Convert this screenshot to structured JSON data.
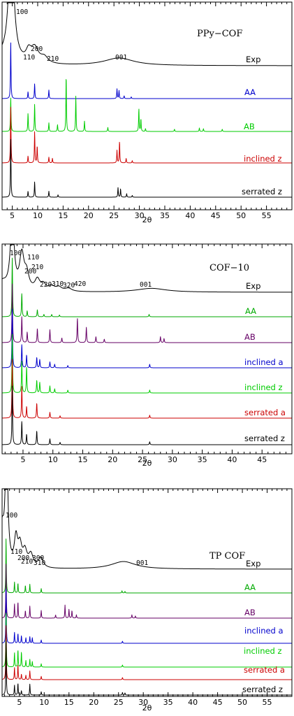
{
  "chart_data": [
    {
      "type": "line",
      "title": "PPy−COF",
      "xlabel": "2θ",
      "ylabel": "",
      "xlim": [
        3,
        60
      ],
      "xticks": [
        5,
        10,
        15,
        20,
        25,
        30,
        35,
        40,
        45,
        50,
        55
      ],
      "grid": false,
      "series": [
        {
          "name": "Exp",
          "color": "#000000",
          "kind": "exp",
          "low_rise": 6,
          "low_width": 1.8,
          "peaks": [
            {
              "x": 4.8,
              "h": 100
            },
            {
              "x": 8.2,
              "h": 8
            },
            {
              "x": 9.4,
              "h": 12
            },
            {
              "x": 11.3,
              "h": 5
            },
            {
              "x": 26.0,
              "h": 6
            }
          ],
          "widths": [
            0.6,
            0.6,
            0.9,
            0.9,
            3.5
          ]
        },
        {
          "name": "AA",
          "color": "#0000cc",
          "peaks": [
            {
              "x": 4.7,
              "h": 100
            },
            {
              "x": 8.1,
              "h": 12
            },
            {
              "x": 9.4,
              "h": 26
            },
            {
              "x": 12.2,
              "h": 15
            },
            {
              "x": 25.6,
              "h": 17
            },
            {
              "x": 26.0,
              "h": 14
            },
            {
              "x": 27.0,
              "h": 5
            },
            {
              "x": 28.4,
              "h": 3
            }
          ]
        },
        {
          "name": "AB",
          "color": "#00cc00",
          "peaks": [
            {
              "x": 4.7,
              "h": 60
            },
            {
              "x": 8.1,
              "h": 32
            },
            {
              "x": 9.4,
              "h": 48
            },
            {
              "x": 12.2,
              "h": 15
            },
            {
              "x": 13.9,
              "h": 12
            },
            {
              "x": 15.6,
              "h": 100
            },
            {
              "x": 17.5,
              "h": 62
            },
            {
              "x": 19.2,
              "h": 18
            },
            {
              "x": 23.8,
              "h": 7
            },
            {
              "x": 29.9,
              "h": 40
            },
            {
              "x": 30.3,
              "h": 22
            },
            {
              "x": 31.2,
              "h": 5
            },
            {
              "x": 36.9,
              "h": 4
            },
            {
              "x": 41.8,
              "h": 6
            },
            {
              "x": 42.6,
              "h": 5
            },
            {
              "x": 46.3,
              "h": 4
            }
          ]
        },
        {
          "name": "inclined z",
          "color": "#cc0000",
          "peaks": [
            {
              "x": 4.7,
              "h": 100
            },
            {
              "x": 8.1,
              "h": 12
            },
            {
              "x": 9.4,
              "h": 55
            },
            {
              "x": 9.9,
              "h": 30
            },
            {
              "x": 12.2,
              "h": 10
            },
            {
              "x": 12.9,
              "h": 8
            },
            {
              "x": 25.6,
              "h": 22
            },
            {
              "x": 26.1,
              "h": 38
            },
            {
              "x": 27.4,
              "h": 8
            },
            {
              "x": 28.6,
              "h": 4
            }
          ]
        },
        {
          "name": "serrated z",
          "color": "#000000",
          "peaks": [
            {
              "x": 4.7,
              "h": 100
            },
            {
              "x": 8.1,
              "h": 10
            },
            {
              "x": 9.4,
              "h": 26
            },
            {
              "x": 12.2,
              "h": 10
            },
            {
              "x": 14.0,
              "h": 4
            },
            {
              "x": 25.8,
              "h": 16
            },
            {
              "x": 26.3,
              "h": 14
            },
            {
              "x": 27.5,
              "h": 6
            },
            {
              "x": 28.6,
              "h": 3
            }
          ]
        }
      ],
      "annotations": [
        "100",
        "110",
        "200",
        "210",
        "001"
      ]
    },
    {
      "type": "line",
      "title": "COF−10",
      "xlabel": "2θ",
      "ylabel": "",
      "xlim": [
        1.5,
        50
      ],
      "xticks": [
        5,
        10,
        15,
        20,
        25,
        30,
        35,
        40,
        45
      ],
      "grid": false,
      "series": [
        {
          "name": "Exp",
          "color": "#000000",
          "kind": "exp",
          "low_rise": 12,
          "low_width": 1.0,
          "peaks": [
            {
              "x": 3.2,
              "h": 100
            },
            {
              "x": 4.8,
              "h": 45
            },
            {
              "x": 5.6,
              "h": 20
            },
            {
              "x": 7.4,
              "h": 14
            },
            {
              "x": 8.4,
              "h": 8
            },
            {
              "x": 9.8,
              "h": 6
            },
            {
              "x": 11.0,
              "h": 5
            },
            {
              "x": 12.6,
              "h": 4
            },
            {
              "x": 26.5,
              "h": 5
            }
          ],
          "widths": [
            0.35,
            0.45,
            0.45,
            0.5,
            0.5,
            0.6,
            0.6,
            0.7,
            3.0
          ]
        },
        {
          "name": "AA",
          "color": "#00aa00",
          "peaks": [
            {
              "x": 3.2,
              "h": 100
            },
            {
              "x": 4.8,
              "h": 40
            },
            {
              "x": 5.7,
              "h": 10
            },
            {
              "x": 7.4,
              "h": 12
            },
            {
              "x": 8.5,
              "h": 4
            },
            {
              "x": 9.8,
              "h": 4
            },
            {
              "x": 11.1,
              "h": 3
            },
            {
              "x": 26.1,
              "h": 4
            }
          ]
        },
        {
          "name": "AB",
          "color": "#660066",
          "peaks": [
            {
              "x": 3.2,
              "h": 100
            },
            {
              "x": 4.8,
              "h": 45
            },
            {
              "x": 5.7,
              "h": 18
            },
            {
              "x": 7.4,
              "h": 24
            },
            {
              "x": 9.5,
              "h": 22
            },
            {
              "x": 11.5,
              "h": 8
            },
            {
              "x": 14.1,
              "h": 42
            },
            {
              "x": 15.6,
              "h": 26
            },
            {
              "x": 17.2,
              "h": 10
            },
            {
              "x": 18.6,
              "h": 6
            },
            {
              "x": 28.0,
              "h": 10
            },
            {
              "x": 28.6,
              "h": 7
            }
          ]
        },
        {
          "name": "inclined a",
          "color": "#0000cc",
          "peaks": [
            {
              "x": 3.2,
              "h": 100
            },
            {
              "x": 4.8,
              "h": 40
            },
            {
              "x": 5.6,
              "h": 22
            },
            {
              "x": 7.3,
              "h": 18
            },
            {
              "x": 7.8,
              "h": 14
            },
            {
              "x": 9.5,
              "h": 10
            },
            {
              "x": 10.3,
              "h": 6
            },
            {
              "x": 12.5,
              "h": 4
            },
            {
              "x": 26.2,
              "h": 6
            }
          ]
        },
        {
          "name": "inclined z",
          "color": "#00cc00",
          "peaks": [
            {
              "x": 3.2,
              "h": 100
            },
            {
              "x": 4.8,
              "h": 55
            },
            {
              "x": 5.6,
              "h": 45
            },
            {
              "x": 7.3,
              "h": 22
            },
            {
              "x": 7.8,
              "h": 18
            },
            {
              "x": 9.5,
              "h": 12
            },
            {
              "x": 10.3,
              "h": 7
            },
            {
              "x": 12.5,
              "h": 5
            },
            {
              "x": 26.2,
              "h": 5
            }
          ]
        },
        {
          "name": "serrated a",
          "color": "#cc0000",
          "peaks": [
            {
              "x": 3.2,
              "h": 100
            },
            {
              "x": 4.8,
              "h": 55
            },
            {
              "x": 5.6,
              "h": 20
            },
            {
              "x": 7.3,
              "h": 26
            },
            {
              "x": 9.5,
              "h": 10
            },
            {
              "x": 11.2,
              "h": 4
            },
            {
              "x": 26.2,
              "h": 5
            }
          ]
        },
        {
          "name": "serrated z",
          "color": "#000000",
          "peaks": [
            {
              "x": 3.2,
              "h": 100
            },
            {
              "x": 4.8,
              "h": 40
            },
            {
              "x": 5.6,
              "h": 18
            },
            {
              "x": 7.3,
              "h": 24
            },
            {
              "x": 9.5,
              "h": 10
            },
            {
              "x": 11.2,
              "h": 4
            },
            {
              "x": 26.2,
              "h": 5
            }
          ]
        }
      ],
      "annotations": [
        "100",
        "110",
        "200",
        "210",
        "220",
        "310",
        "320",
        "420",
        "001"
      ]
    },
    {
      "type": "line",
      "title": "TP COF",
      "xlabel": "2θ",
      "ylabel": "",
      "xlim": [
        1.5,
        60
      ],
      "xticks": [
        5,
        10,
        15,
        20,
        25,
        30,
        35,
        40,
        45,
        50,
        55
      ],
      "grid": false,
      "series": [
        {
          "name": "Exp",
          "color": "#000000",
          "kind": "exp",
          "low_rise": 30,
          "low_width": 0.5,
          "peaks": [
            {
              "x": 2.4,
              "h": 100
            },
            {
              "x": 4.3,
              "h": 22
            },
            {
              "x": 5.1,
              "h": 16
            },
            {
              "x": 6.1,
              "h": 12
            },
            {
              "x": 7.3,
              "h": 10
            },
            {
              "x": 9.3,
              "h": 8
            },
            {
              "x": 26.0,
              "h": 6
            }
          ],
          "widths": [
            0.3,
            0.4,
            0.45,
            0.5,
            0.55,
            0.6,
            3.0
          ]
        },
        {
          "name": "AA",
          "color": "#00aa00",
          "peaks": [
            {
              "x": 2.3,
              "h": 100
            },
            {
              "x": 4.0,
              "h": 20
            },
            {
              "x": 4.7,
              "h": 18
            },
            {
              "x": 6.2,
              "h": 14
            },
            {
              "x": 7.1,
              "h": 16
            },
            {
              "x": 9.4,
              "h": 8
            },
            {
              "x": 25.7,
              "h": 4
            },
            {
              "x": 26.3,
              "h": 3
            }
          ]
        },
        {
          "name": "AB",
          "color": "#660066",
          "peaks": [
            {
              "x": 2.3,
              "h": 100
            },
            {
              "x": 4.0,
              "h": 26
            },
            {
              "x": 4.7,
              "h": 30
            },
            {
              "x": 6.2,
              "h": 14
            },
            {
              "x": 7.1,
              "h": 22
            },
            {
              "x": 9.4,
              "h": 14
            },
            {
              "x": 12.3,
              "h": 6
            },
            {
              "x": 14.2,
              "h": 24
            },
            {
              "x": 15.0,
              "h": 16
            },
            {
              "x": 15.6,
              "h": 14
            },
            {
              "x": 16.5,
              "h": 6
            },
            {
              "x": 27.7,
              "h": 6
            },
            {
              "x": 28.4,
              "h": 4
            }
          ]
        },
        {
          "name": "inclined a",
          "color": "#0000cc",
          "peaks": [
            {
              "x": 2.3,
              "h": 100
            },
            {
              "x": 4.0,
              "h": 20
            },
            {
              "x": 4.7,
              "h": 18
            },
            {
              "x": 5.4,
              "h": 14
            },
            {
              "x": 6.3,
              "h": 10
            },
            {
              "x": 7.1,
              "h": 12
            },
            {
              "x": 7.6,
              "h": 10
            },
            {
              "x": 9.4,
              "h": 6
            },
            {
              "x": 25.8,
              "h": 4
            }
          ]
        },
        {
          "name": "inclined z",
          "color": "#00cc00",
          "peaks": [
            {
              "x": 2.3,
              "h": 100
            },
            {
              "x": 4.0,
              "h": 26
            },
            {
              "x": 4.7,
              "h": 32
            },
            {
              "x": 5.4,
              "h": 28
            },
            {
              "x": 6.3,
              "h": 12
            },
            {
              "x": 7.1,
              "h": 14
            },
            {
              "x": 7.6,
              "h": 10
            },
            {
              "x": 9.4,
              "h": 6
            },
            {
              "x": 25.8,
              "h": 4
            }
          ]
        },
        {
          "name": "serrated a",
          "color": "#cc0000",
          "peaks": [
            {
              "x": 2.3,
              "h": 100
            },
            {
              "x": 4.0,
              "h": 22
            },
            {
              "x": 4.7,
              "h": 28
            },
            {
              "x": 5.4,
              "h": 10
            },
            {
              "x": 6.3,
              "h": 8
            },
            {
              "x": 7.1,
              "h": 16
            },
            {
              "x": 9.4,
              "h": 6
            },
            {
              "x": 25.8,
              "h": 4
            }
          ]
        },
        {
          "name": "serrated z",
          "color": "#000000",
          "peaks": [
            {
              "x": 2.3,
              "h": 100
            },
            {
              "x": 4.0,
              "h": 18
            },
            {
              "x": 4.7,
              "h": 22
            },
            {
              "x": 5.4,
              "h": 8
            },
            {
              "x": 7.1,
              "h": 20
            },
            {
              "x": 9.4,
              "h": 6
            },
            {
              "x": 25.8,
              "h": 5
            },
            {
              "x": 26.3,
              "h": 4
            }
          ]
        }
      ],
      "annotations": [
        "100",
        "110",
        "200",
        "210",
        "300",
        "310",
        "001"
      ]
    }
  ]
}
